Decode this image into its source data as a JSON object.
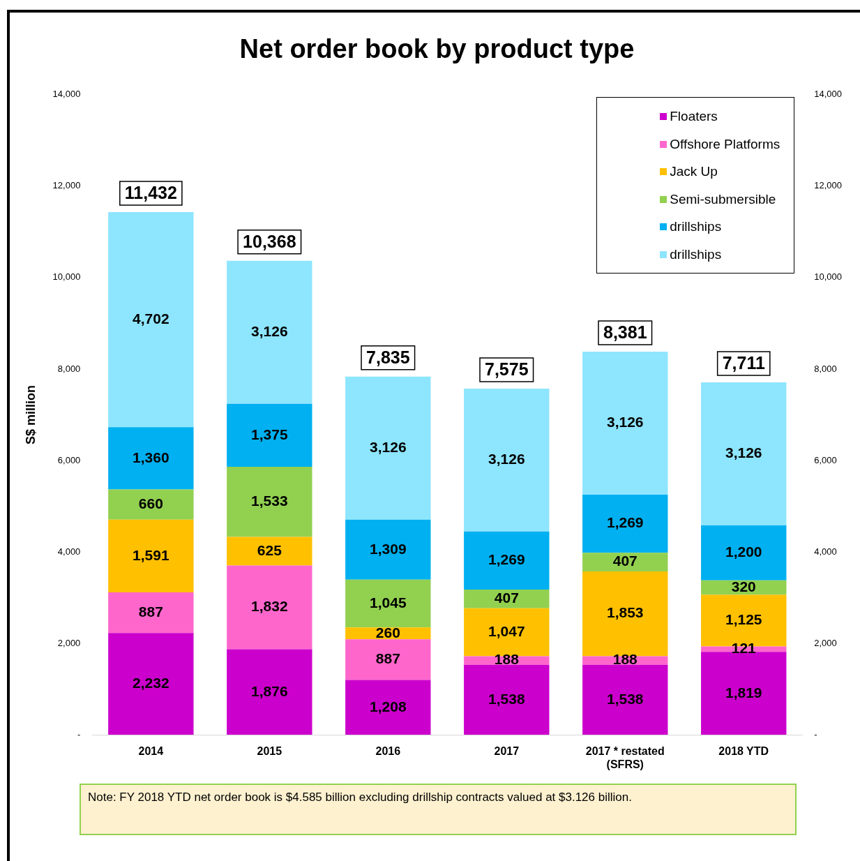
{
  "chart_data": {
    "type": "bar",
    "stacked": true,
    "title": "Net order book by product type",
    "ylabel": "S$ million",
    "categories": [
      "2014",
      "2015",
      "2016",
      "2017",
      "2017 * restated\n(SFRS)",
      "2018 YTD"
    ],
    "series": [
      {
        "name": "Floaters",
        "color": "#cc00cc",
        "values": [
          2232,
          1876,
          1208,
          1538,
          1538,
          1819
        ],
        "value_labels": [
          "2,232",
          "1,876",
          "1,208",
          "1,538",
          "1,538",
          "1,819"
        ]
      },
      {
        "name": "Offshore Platforms",
        "color": "#ff66cc",
        "values": [
          887,
          1832,
          887,
          188,
          188,
          121
        ],
        "value_labels": [
          "887",
          "1,832",
          "887",
          "188",
          "188",
          "121"
        ]
      },
      {
        "name": "Jack Up",
        "color": "#ffc000",
        "values": [
          1591,
          625,
          260,
          1047,
          1853,
          1125
        ],
        "value_labels": [
          "1,591",
          "625",
          "260",
          "1,047",
          "1,853",
          "1,125"
        ]
      },
      {
        "name": "Semi-submersible",
        "color": "#92d050",
        "values": [
          660,
          1533,
          1045,
          407,
          407,
          320
        ],
        "value_labels": [
          "660",
          "1,533",
          "1,045",
          "407",
          "407",
          "320"
        ]
      },
      {
        "name": "drillships",
        "color": "#00b0f0",
        "values": [
          1360,
          1375,
          1309,
          1269,
          1269,
          1200
        ],
        "value_labels": [
          "1,360",
          "1,375",
          "1,309",
          "1,269",
          "1,269",
          "1,200"
        ]
      },
      {
        "name": "drillships",
        "color": "#8ee5fe",
        "values": [
          4702,
          3126,
          3126,
          3126,
          3126,
          3126
        ],
        "value_labels": [
          "4,702",
          "3,126",
          "3,126",
          "3,126",
          "3,126",
          "3,126"
        ]
      }
    ],
    "totals": [
      "11,432",
      "10,368",
      "7,835",
      "7,575",
      "8,381",
      "7,711"
    ],
    "ylim": [
      0,
      14000
    ],
    "yticks": [
      {
        "value": 0,
        "label": "-"
      },
      {
        "value": 2000,
        "label": "2,000"
      },
      {
        "value": 4000,
        "label": "4,000"
      },
      {
        "value": 6000,
        "label": "6,000"
      },
      {
        "value": 8000,
        "label": "8,000"
      },
      {
        "value": 10000,
        "label": "10,000"
      },
      {
        "value": 12000,
        "label": "12,000"
      },
      {
        "value": 14000,
        "label": "14,000"
      }
    ],
    "y2lim": [
      0,
      14000
    ],
    "y2ticks": [
      {
        "value": 0,
        "label": "-"
      },
      {
        "value": 2000,
        "label": "2,000"
      },
      {
        "value": 4000,
        "label": "4,000"
      },
      {
        "value": 6000,
        "label": "6,000"
      },
      {
        "value": 8000,
        "label": "8,000"
      },
      {
        "value": 10000,
        "label": "10,000"
      },
      {
        "value": 12000,
        "label": "12,000"
      },
      {
        "value": 14000,
        "label": "14,000"
      }
    ],
    "grid": false,
    "legend": "top right",
    "annotations": [
      "Note: FY 2018 YTD net order book is $4.585 billion excluding drillship contracts valued at $3.126 billion."
    ]
  }
}
